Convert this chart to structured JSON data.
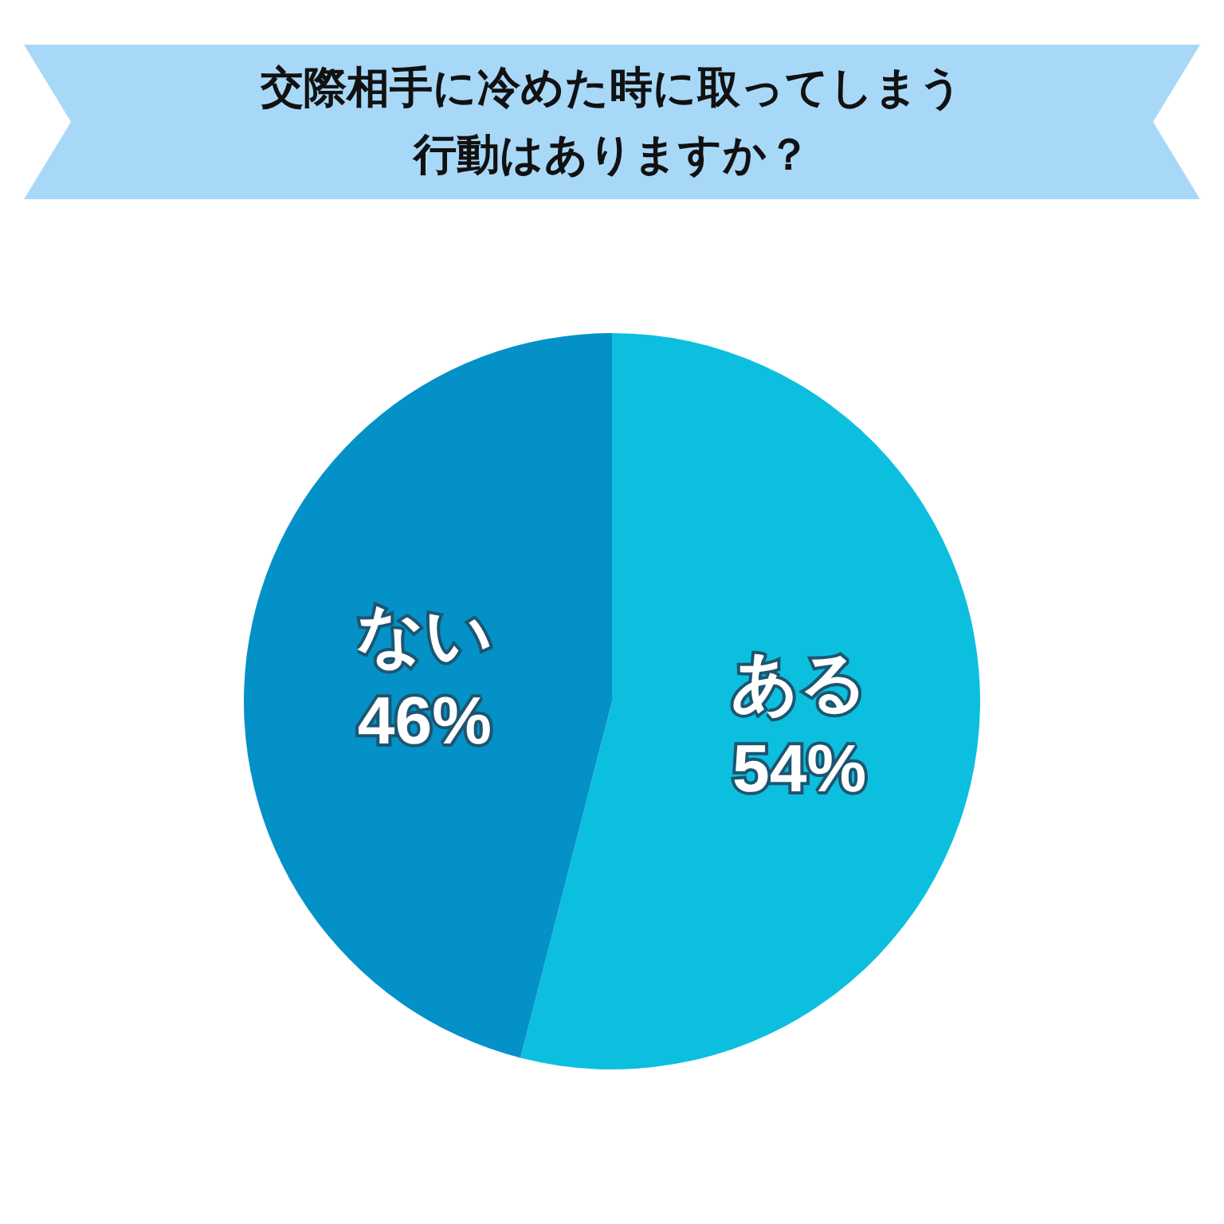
{
  "chart_data": {
    "type": "pie",
    "title": "交際相手に冷めた時に取ってしまう行動はありますか？",
    "categories": [
      "ある",
      "ない"
    ],
    "values": [
      54,
      46
    ],
    "colors": [
      "#0cbfdf",
      "#0391c7"
    ],
    "value_labels": [
      "54%",
      "46%"
    ],
    "legend": false
  }
}
